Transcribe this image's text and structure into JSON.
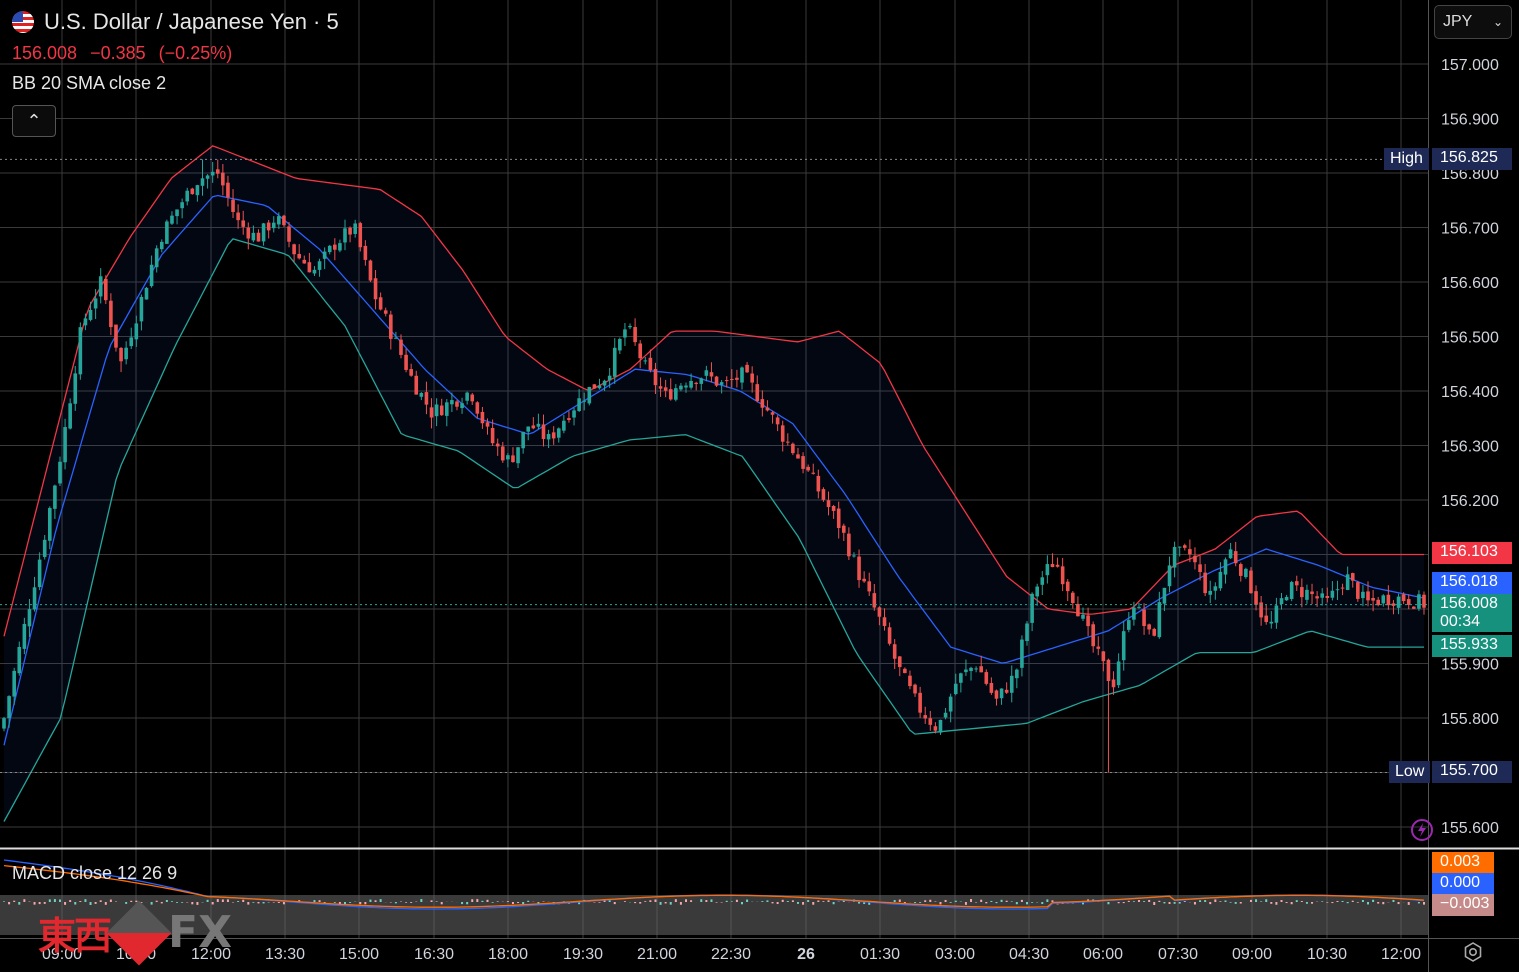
{
  "header": {
    "symbol_title": "U.S. Dollar / Japanese Yen · 5",
    "last_price": "156.008",
    "change": "−0.385",
    "change_pct": "(−0.25%)",
    "indicator_label": "BB 20 SMA close 2"
  },
  "currency_select": {
    "value": "JPY"
  },
  "macd": {
    "label": "MACD close 12 26 9",
    "signal_value": "0.003",
    "macd_value": "0.000",
    "hist_value": "−0.003"
  },
  "price_tags": {
    "high_label": "High",
    "high_value": "156.825",
    "low_label": "Low",
    "low_value": "155.700",
    "bb_upper": "156.103",
    "bb_basis": "156.018",
    "last": "156.008",
    "countdown": "00:34",
    "bb_lower": "155.933"
  },
  "watermark": {
    "cjk": "東西",
    "fx": "FX"
  },
  "colors": {
    "up": "#26a69a",
    "down": "#ef5350",
    "bb_upper": "#f23645",
    "bb_basis": "#2962ff",
    "bb_lower": "#26a69a",
    "grid": "#3a3a3a"
  },
  "chart_data": {
    "type": "candlestick",
    "series_name": "U.S. Dollar / Japanese Yen · 5",
    "interval": "5m",
    "y_ticks": [
      "157.000",
      "156.900",
      "156.800",
      "156.700",
      "156.600",
      "156.500",
      "156.400",
      "156.300",
      "156.200",
      "156.100",
      "155.900",
      "155.800",
      "155.700",
      "155.600"
    ],
    "x_ticks": [
      "09:00",
      "10:30",
      "12:00",
      "13:30",
      "15:00",
      "16:30",
      "18:00",
      "19:30",
      "21:00",
      "22:30",
      "26",
      "01:30",
      "03:00",
      "04:30",
      "06:00",
      "07:30",
      "09:00",
      "10:30",
      "12:00"
    ],
    "ylim": [
      155.55,
      157.08
    ],
    "high": 156.825,
    "low": 155.7,
    "close_path": [
      155.8,
      155.96,
      156.12,
      156.3,
      156.52,
      156.6,
      156.45,
      156.56,
      156.68,
      156.74,
      156.79,
      156.8,
      156.71,
      156.68,
      156.72,
      156.65,
      156.62,
      156.67,
      156.7,
      156.58,
      156.5,
      156.42,
      156.36,
      156.38,
      156.4,
      156.31,
      156.27,
      156.34,
      156.31,
      156.36,
      156.4,
      156.43,
      156.52,
      156.44,
      156.39,
      156.42,
      156.43,
      156.41,
      156.43,
      156.38,
      156.32,
      156.27,
      156.21,
      156.15,
      156.06,
      155.98,
      155.89,
      155.82,
      155.78,
      155.87,
      155.9,
      155.83,
      155.88,
      156.04,
      156.09,
      156.02,
      155.93,
      155.86,
      156.02,
      155.94,
      156.1,
      156.1,
      156.02,
      156.11,
      156.05,
      155.96,
      156.04,
      156.03,
      156.01,
      156.06,
      156.01,
      156.02,
      156.02,
      156.01
    ],
    "bb_upper_path": [
      155.95,
      156.25,
      156.55,
      156.68,
      156.79,
      156.85,
      156.82,
      156.79,
      156.78,
      156.77,
      156.72,
      156.62,
      156.5,
      156.44,
      156.4,
      156.44,
      156.51,
      156.51,
      156.5,
      156.49,
      156.51,
      156.45,
      156.3,
      156.18,
      156.06,
      156.0,
      155.99,
      156.0,
      156.08,
      156.11,
      156.17,
      156.18,
      156.1,
      156.1,
      156.1
    ],
    "bb_basis_path": [
      155.75,
      156.15,
      156.48,
      156.65,
      156.76,
      156.74,
      156.66,
      156.55,
      156.44,
      156.35,
      156.32,
      156.38,
      156.44,
      156.43,
      156.4,
      156.34,
      156.21,
      156.06,
      155.93,
      155.9,
      155.93,
      155.96,
      156.02,
      156.07,
      156.11,
      156.08,
      156.04,
      156.02
    ],
    "bb_lower_path": [
      155.61,
      155.8,
      156.25,
      156.48,
      156.68,
      156.65,
      156.52,
      156.32,
      156.29,
      156.22,
      156.28,
      156.31,
      156.32,
      156.28,
      156.13,
      155.92,
      155.77,
      155.78,
      155.79,
      155.83,
      155.86,
      155.92,
      155.92,
      155.96,
      155.93,
      155.93
    ]
  }
}
